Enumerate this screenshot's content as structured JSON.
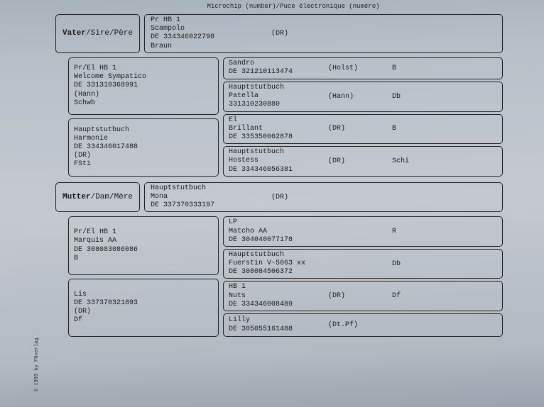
{
  "header": "Microchip (number)/Puce électronique (numéro)",
  "sideText": "© 1999 by FNverlag",
  "sire": {
    "label_bold": "Vater",
    "label_rest": "/Sire/Père",
    "studbook": "Pr HB 1",
    "name": "Scampolo",
    "id": "DE 334346022798",
    "color": "Braun",
    "origin": "(DR)",
    "gp": [
      {
        "studbook": "Pr/El HB 1",
        "name": "Welcome Sympatico",
        "id": "DE 331310368991",
        "color": "Schwb",
        "origin": "(Hann)",
        "ggp": [
          {
            "col1": "Sandro\nDE 321210113474",
            "col2": "(Holst)",
            "col3": "B"
          },
          {
            "col1": "Hauptstutbuch\nPatella\n331310230880",
            "col2": "(Hann)",
            "col3": "Db"
          }
        ]
      },
      {
        "studbook": "Hauptstutbuch",
        "name": "Harmonie",
        "id": "DE 334346017488",
        "color": "FSti",
        "origin": "(DR)",
        "ggp": [
          {
            "col1": "El\nBrillant\nDE 335350062878",
            "col2": "(DR)",
            "col3": "B"
          },
          {
            "col1": "Hauptstutbuch\nHostess\nDE 334346056381",
            "col2": "(DR)",
            "col3": "Schi"
          }
        ]
      }
    ]
  },
  "dam": {
    "label_bold": "Mutter",
    "label_rest": "/Dam/Mère",
    "studbook": "Hauptstutbuch",
    "name": "Mona",
    "id": "DE 337370333197",
    "color": "",
    "origin": "(DR)",
    "gp": [
      {
        "studbook": "Pr/El HB 1",
        "name": "Marquis AA",
        "id": "DE 308083086086",
        "color": "B",
        "origin": "",
        "ggp": [
          {
            "col1": "LP\nMatcho AA\nDE 304040077178",
            "col2": "",
            "col3": "R"
          },
          {
            "col1": "Hauptstutbuch\nFuerstin V-5063 xx\nDE 308084506372",
            "col2": "",
            "col3": "Db"
          }
        ]
      },
      {
        "studbook": "",
        "name": "Lis",
        "id": "DE 337370321893",
        "color": "Df",
        "origin": "(DR)",
        "ggp": [
          {
            "col1": "HB 1\nNuts\nDE 334346008489",
            "col2": "(DR)",
            "col3": "Df"
          },
          {
            "col1": "Lilly\nDE 305055161488",
            "col2": "(Dt.Pf)",
            "col3": ""
          }
        ]
      }
    ]
  }
}
